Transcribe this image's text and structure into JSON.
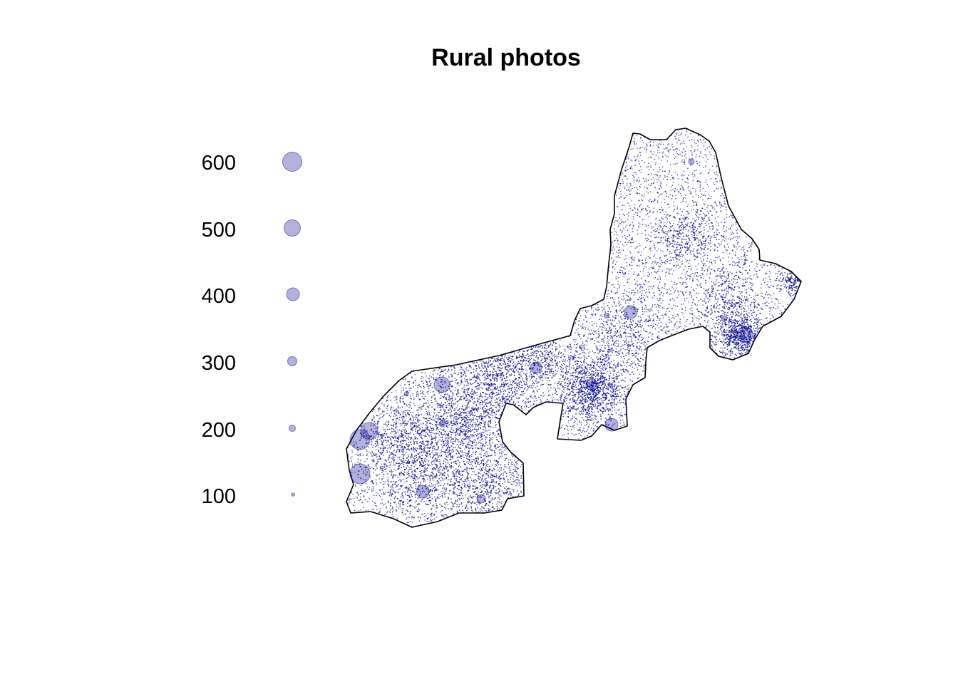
{
  "title": "Rural photos",
  "legend": {
    "items": [
      {
        "label": "600",
        "value": 600
      },
      {
        "label": "500",
        "value": 500
      },
      {
        "label": "400",
        "value": 400
      },
      {
        "label": "300",
        "value": 300
      },
      {
        "label": "200",
        "value": 200
      },
      {
        "label": "100",
        "value": 100
      }
    ]
  },
  "colors": {
    "point_fill": "#00008B",
    "point_fill_opacity": 0.3,
    "outline": "#000000",
    "background": "#ffffff"
  }
}
